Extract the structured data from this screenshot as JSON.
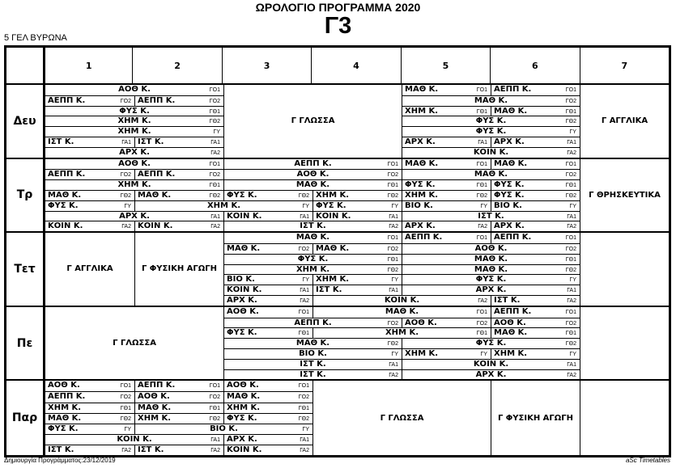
{
  "title": "ΩΡΟΛΟΓΙΟ ΠΡΟΓΡΑΜΜΑ 2020",
  "class_name": "Γ3",
  "school": "5 ΓΕΛ ΒΥΡΩΝΑ",
  "periods": [
    "1",
    "2",
    "3",
    "4",
    "5",
    "6",
    "7"
  ],
  "groups_order": [
    "ΓΟ1",
    "ΓΟ2",
    "ΓΘ1",
    "ΓΘ2",
    "ΓΥ",
    "ΓΑ1",
    "ΓΑ2"
  ],
  "days": [
    {
      "label": "Δευ",
      "blocks": [
        {
          "p": 3,
          "n": 2,
          "s": "Γ ΓΛΩΣΣΑ"
        },
        {
          "p": 7,
          "n": 1,
          "s": "Γ ΑΓΓΛΙΚΑ"
        }
      ],
      "entries": [
        {
          "p": 1,
          "n": 2,
          "s": "ΑΟΘ Κ.",
          "g": "ΓΟ1"
        },
        {
          "p": 1,
          "n": 1,
          "s": "ΑΕΠΠ Κ.",
          "g": "ΓΟ2"
        },
        {
          "p": 2,
          "n": 1,
          "s": "ΑΕΠΠ Κ.",
          "g": "ΓΟ2"
        },
        {
          "p": 1,
          "n": 2,
          "s": "ΦΥΣ Κ.",
          "g": "ΓΘ1"
        },
        {
          "p": 1,
          "n": 2,
          "s": "ΧΗΜ Κ.",
          "g": "ΓΘ2"
        },
        {
          "p": 1,
          "n": 2,
          "s": "ΧΗΜ Κ.",
          "g": "ΓΥ"
        },
        {
          "p": 1,
          "n": 1,
          "s": "ΙΣΤ Κ.",
          "g": "ΓΑ1"
        },
        {
          "p": 2,
          "n": 1,
          "s": "ΙΣΤ Κ.",
          "g": "ΓΑ1"
        },
        {
          "p": 1,
          "n": 2,
          "s": "ΑΡΧ Κ.",
          "g": "ΓΑ2"
        },
        {
          "p": 5,
          "n": 1,
          "s": "ΜΑΘ Κ.",
          "g": "ΓΟ1"
        },
        {
          "p": 6,
          "n": 1,
          "s": "ΑΕΠΠ Κ.",
          "g": "ΓΟ1"
        },
        {
          "p": 5,
          "n": 2,
          "s": "ΜΑΘ Κ.",
          "g": "ΓΟ2"
        },
        {
          "p": 5,
          "n": 1,
          "s": "ΧΗΜ Κ.",
          "g": "ΓΘ1"
        },
        {
          "p": 6,
          "n": 1,
          "s": "ΜΑΘ Κ.",
          "g": "ΓΘ1"
        },
        {
          "p": 5,
          "n": 2,
          "s": "ΦΥΣ Κ.",
          "g": "ΓΘ2"
        },
        {
          "p": 5,
          "n": 2,
          "s": "ΦΥΣ Κ.",
          "g": "ΓΥ"
        },
        {
          "p": 5,
          "n": 1,
          "s": "ΑΡΧ Κ.",
          "g": "ΓΑ1"
        },
        {
          "p": 6,
          "n": 1,
          "s": "ΑΡΧ Κ.",
          "g": "ΓΑ1"
        },
        {
          "p": 5,
          "n": 2,
          "s": "ΚΟΙΝ Κ.",
          "g": "ΓΑ2"
        }
      ]
    },
    {
      "label": "Τρ",
      "blocks": [
        {
          "p": 7,
          "n": 1,
          "s": "Γ ΘΡΗΣΚΕΥΤΙΚΑ"
        }
      ],
      "entries": [
        {
          "p": 1,
          "n": 2,
          "s": "ΑΟΘ Κ.",
          "g": "ΓΟ1"
        },
        {
          "p": 1,
          "n": 1,
          "s": "ΑΕΠΠ Κ.",
          "g": "ΓΟ2"
        },
        {
          "p": 2,
          "n": 1,
          "s": "ΑΕΠΠ Κ.",
          "g": "ΓΟ2"
        },
        {
          "p": 1,
          "n": 2,
          "s": "ΧΗΜ Κ.",
          "g": "ΓΘ1"
        },
        {
          "p": 1,
          "n": 1,
          "s": "ΜΑΘ Κ.",
          "g": "ΓΘ2"
        },
        {
          "p": 2,
          "n": 1,
          "s": "ΜΑΘ Κ.",
          "g": "ΓΘ2"
        },
        {
          "p": 1,
          "n": 1,
          "s": "ΦΥΣ Κ.",
          "g": "ΓΥ"
        },
        {
          "p": 2,
          "n": 2,
          "s": "ΧΗΜ Κ.",
          "g": "ΓΥ"
        },
        {
          "p": 4,
          "n": 1,
          "s": "ΦΥΣ Κ.",
          "g": "ΓΥ"
        },
        {
          "p": 1,
          "n": 2,
          "s": "ΑΡΧ Κ.",
          "g": "ΓΑ1"
        },
        {
          "p": 1,
          "n": 1,
          "s": "ΚΟΙΝ Κ.",
          "g": "ΓΑ2"
        },
        {
          "p": 2,
          "n": 1,
          "s": "ΚΟΙΝ Κ.",
          "g": "ΓΑ2"
        },
        {
          "p": 3,
          "n": 2,
          "s": "ΑΕΠΠ Κ.",
          "g": "ΓΟ1"
        },
        {
          "p": 3,
          "n": 2,
          "s": "ΑΟΘ Κ.",
          "g": "ΓΟ2"
        },
        {
          "p": 3,
          "n": 2,
          "s": "ΜΑΘ Κ.",
          "g": "ΓΘ1"
        },
        {
          "p": 3,
          "n": 1,
          "s": "ΦΥΣ Κ.",
          "g": "ΓΘ2"
        },
        {
          "p": 4,
          "n": 1,
          "s": "ΧΗΜ Κ.",
          "g": "ΓΘ2"
        },
        {
          "p": 3,
          "n": 1,
          "s": "ΚΟΙΝ Κ.",
          "g": "ΓΑ1"
        },
        {
          "p": 4,
          "n": 1,
          "s": "ΚΟΙΝ Κ.",
          "g": "ΓΑ1"
        },
        {
          "p": 3,
          "n": 2,
          "s": "ΙΣΤ Κ.",
          "g": "ΓΑ2"
        },
        {
          "p": 5,
          "n": 1,
          "s": "ΜΑΘ Κ.",
          "g": "ΓΟ1"
        },
        {
          "p": 6,
          "n": 1,
          "s": "ΜΑΘ Κ.",
          "g": "ΓΟ1"
        },
        {
          "p": 5,
          "n": 2,
          "s": "ΜΑΘ Κ.",
          "g": "ΓΟ2"
        },
        {
          "p": 5,
          "n": 1,
          "s": "ΦΥΣ Κ.",
          "g": "ΓΘ1"
        },
        {
          "p": 6,
          "n": 1,
          "s": "ΦΥΣ Κ.",
          "g": "ΓΘ1"
        },
        {
          "p": 5,
          "n": 1,
          "s": "ΧΗΜ Κ.",
          "g": "ΓΘ2"
        },
        {
          "p": 6,
          "n": 1,
          "s": "ΦΥΣ Κ.",
          "g": "ΓΘ2"
        },
        {
          "p": 5,
          "n": 1,
          "s": "ΒΙΟ Κ.",
          "g": "ΓΥ"
        },
        {
          "p": 6,
          "n": 1,
          "s": "ΒΙΟ Κ.",
          "g": "ΓΥ"
        },
        {
          "p": 5,
          "n": 2,
          "s": "ΙΣΤ Κ.",
          "g": "ΓΑ1"
        },
        {
          "p": 5,
          "n": 1,
          "s": "ΑΡΧ Κ.",
          "g": "ΓΑ2"
        },
        {
          "p": 6,
          "n": 1,
          "s": "ΑΡΧ Κ.",
          "g": "ΓΑ2"
        }
      ]
    },
    {
      "label": "Τετ",
      "blocks": [
        {
          "p": 1,
          "n": 1,
          "s": "Γ ΑΓΓΛΙΚΑ"
        },
        {
          "p": 2,
          "n": 1,
          "s": "Γ ΦΥΣΙΚΗ ΑΓΩΓΗ"
        }
      ],
      "entries": [
        {
          "p": 3,
          "n": 2,
          "s": "ΜΑΘ Κ.",
          "g": "ΓΟ1"
        },
        {
          "p": 3,
          "n": 1,
          "s": "ΜΑΘ Κ.",
          "g": "ΓΟ2"
        },
        {
          "p": 4,
          "n": 1,
          "s": "ΜΑΘ Κ.",
          "g": "ΓΟ2"
        },
        {
          "p": 3,
          "n": 2,
          "s": "ΦΥΣ Κ.",
          "g": "ΓΘ1"
        },
        {
          "p": 3,
          "n": 2,
          "s": "ΧΗΜ Κ.",
          "g": "ΓΘ2"
        },
        {
          "p": 3,
          "n": 1,
          "s": "ΒΙΟ Κ.",
          "g": "ΓΥ"
        },
        {
          "p": 4,
          "n": 1,
          "s": "ΧΗΜ Κ.",
          "g": "ΓΥ"
        },
        {
          "p": 3,
          "n": 1,
          "s": "ΚΟΙΝ Κ.",
          "g": "ΓΑ1"
        },
        {
          "p": 4,
          "n": 1,
          "s": "ΙΣΤ Κ.",
          "g": "ΓΑ1"
        },
        {
          "p": 3,
          "n": 1,
          "s": "ΑΡΧ Κ.",
          "g": "ΓΑ2"
        },
        {
          "p": 4,
          "n": 2,
          "s": "ΚΟΙΝ Κ.",
          "g": "ΓΑ2"
        },
        {
          "p": 6,
          "n": 1,
          "s": "ΙΣΤ Κ.",
          "g": "ΓΑ2"
        },
        {
          "p": 5,
          "n": 1,
          "s": "ΑΕΠΠ Κ.",
          "g": "ΓΟ1"
        },
        {
          "p": 6,
          "n": 1,
          "s": "ΑΕΠΠ Κ.",
          "g": "ΓΟ1"
        },
        {
          "p": 5,
          "n": 2,
          "s": "ΑΟΘ Κ.",
          "g": "ΓΟ2"
        },
        {
          "p": 5,
          "n": 2,
          "s": "ΜΑΘ Κ.",
          "g": "ΓΘ1"
        },
        {
          "p": 5,
          "n": 2,
          "s": "ΜΑΘ Κ.",
          "g": "ΓΘ2"
        },
        {
          "p": 5,
          "n": 2,
          "s": "ΦΥΣ Κ.",
          "g": "ΓΥ"
        },
        {
          "p": 5,
          "n": 2,
          "s": "ΑΡΧ Κ.",
          "g": "ΓΑ1"
        }
      ]
    },
    {
      "label": "Πε",
      "blocks": [
        {
          "p": 1,
          "n": 2,
          "s": "Γ ΓΛΩΣΣΑ"
        }
      ],
      "entries": [
        {
          "p": 3,
          "n": 1,
          "s": "ΑΟΘ Κ.",
          "g": "ΓΟ1"
        },
        {
          "p": 4,
          "n": 2,
          "s": "ΜΑΘ Κ.",
          "g": "ΓΟ1"
        },
        {
          "p": 6,
          "n": 1,
          "s": "ΑΕΠΠ Κ.",
          "g": "ΓΟ1"
        },
        {
          "p": 3,
          "n": 2,
          "s": "ΑΕΠΠ Κ.",
          "g": "ΓΟ2"
        },
        {
          "p": 5,
          "n": 1,
          "s": "ΑΟΘ Κ.",
          "g": "ΓΟ2"
        },
        {
          "p": 6,
          "n": 1,
          "s": "ΑΟΘ Κ.",
          "g": "ΓΟ2"
        },
        {
          "p": 3,
          "n": 1,
          "s": "ΦΥΣ Κ.",
          "g": "ΓΘ1"
        },
        {
          "p": 4,
          "n": 2,
          "s": "ΧΗΜ Κ.",
          "g": "ΓΘ1"
        },
        {
          "p": 6,
          "n": 1,
          "s": "ΜΑΘ Κ.",
          "g": "ΓΘ1"
        },
        {
          "p": 3,
          "n": 2,
          "s": "ΜΑΘ Κ.",
          "g": "ΓΘ2"
        },
        {
          "p": 5,
          "n": 2,
          "s": "ΦΥΣ Κ.",
          "g": "ΓΘ2"
        },
        {
          "p": 3,
          "n": 2,
          "s": "ΒΙΟ Κ.",
          "g": "ΓΥ"
        },
        {
          "p": 5,
          "n": 1,
          "s": "ΧΗΜ Κ.",
          "g": "ΓΥ"
        },
        {
          "p": 6,
          "n": 1,
          "s": "ΧΗΜ Κ.",
          "g": "ΓΥ"
        },
        {
          "p": 3,
          "n": 2,
          "s": "ΙΣΤ Κ.",
          "g": "ΓΑ1"
        },
        {
          "p": 5,
          "n": 2,
          "s": "ΚΟΙΝ Κ.",
          "g": "ΓΑ1"
        },
        {
          "p": 3,
          "n": 2,
          "s": "ΙΣΤ Κ.",
          "g": "ΓΑ2"
        },
        {
          "p": 5,
          "n": 2,
          "s": "ΑΡΧ Κ.",
          "g": "ΓΑ2"
        }
      ]
    },
    {
      "label": "Παρ",
      "blocks": [
        {
          "p": 4,
          "n": 2,
          "s": "Γ ΓΛΩΣΣΑ"
        },
        {
          "p": 6,
          "n": 1,
          "s": "Γ ΦΥΣΙΚΗ ΑΓΩΓΗ"
        }
      ],
      "entries": [
        {
          "p": 1,
          "n": 1,
          "s": "ΑΟΘ Κ.",
          "g": "ΓΟ1"
        },
        {
          "p": 2,
          "n": 1,
          "s": "ΑΕΠΠ Κ.",
          "g": "ΓΟ1"
        },
        {
          "p": 3,
          "n": 1,
          "s": "ΑΟΘ Κ.",
          "g": "ΓΟ1"
        },
        {
          "p": 1,
          "n": 1,
          "s": "ΑΕΠΠ Κ.",
          "g": "ΓΟ2"
        },
        {
          "p": 2,
          "n": 1,
          "s": "ΑΟΘ Κ.",
          "g": "ΓΟ2"
        },
        {
          "p": 3,
          "n": 1,
          "s": "ΜΑΘ Κ.",
          "g": "ΓΟ2"
        },
        {
          "p": 1,
          "n": 1,
          "s": "ΧΗΜ Κ.",
          "g": "ΓΘ1"
        },
        {
          "p": 2,
          "n": 1,
          "s": "ΜΑΘ Κ.",
          "g": "ΓΘ1"
        },
        {
          "p": 3,
          "n": 1,
          "s": "ΧΗΜ Κ.",
          "g": "ΓΘ1"
        },
        {
          "p": 1,
          "n": 1,
          "s": "ΜΑΘ Κ.",
          "g": "ΓΘ2"
        },
        {
          "p": 2,
          "n": 1,
          "s": "ΧΗΜ Κ.",
          "g": "ΓΘ2"
        },
        {
          "p": 3,
          "n": 1,
          "s": "ΦΥΣ Κ.",
          "g": "ΓΘ2"
        },
        {
          "p": 1,
          "n": 1,
          "s": "ΦΥΣ Κ.",
          "g": "ΓΥ"
        },
        {
          "p": 2,
          "n": 2,
          "s": "ΒΙΟ Κ.",
          "g": "ΓΥ"
        },
        {
          "p": 1,
          "n": 2,
          "s": "ΚΟΙΝ Κ.",
          "g": "ΓΑ1"
        },
        {
          "p": 3,
          "n": 1,
          "s": "ΑΡΧ Κ.",
          "g": "ΓΑ1"
        },
        {
          "p": 1,
          "n": 1,
          "s": "ΙΣΤ Κ.",
          "g": "ΓΑ2"
        },
        {
          "p": 2,
          "n": 1,
          "s": "ΙΣΤ Κ.",
          "g": "ΓΑ2"
        },
        {
          "p": 3,
          "n": 1,
          "s": "ΚΟΙΝ Κ.",
          "g": "ΓΑ2"
        }
      ]
    }
  ],
  "footer": {
    "created": "Δημιουργία Προγράμματος:23/12/2019",
    "brand": "aSc Timetables"
  }
}
